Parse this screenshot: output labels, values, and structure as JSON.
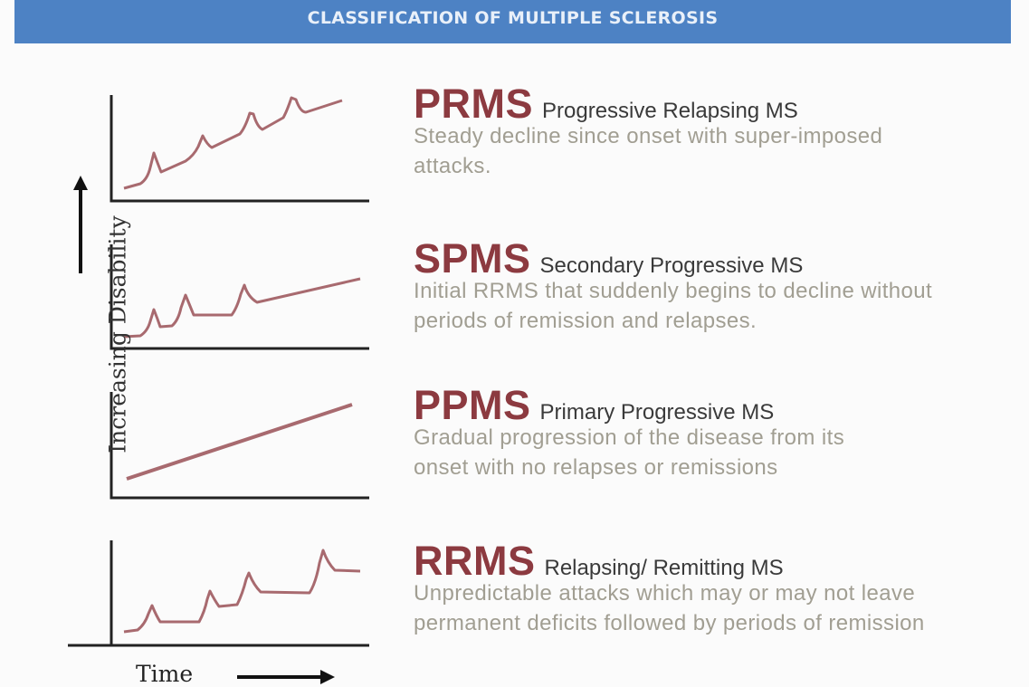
{
  "header": {
    "title": "CLASSIFICATION OF MULTIPLE SCLEROSIS"
  },
  "axes": {
    "y_label": "Increasing Disability",
    "x_label": "Time"
  },
  "colors": {
    "banner": "#4d82c4",
    "curve": "#a86a6f",
    "abbr": "#8c3a40",
    "description": "#a19e92"
  },
  "types": [
    {
      "abbr": "PRMS",
      "full_name": "Progressive Relapsing MS",
      "description": [
        "Steady decline since onset with super-imposed",
        "attacks."
      ]
    },
    {
      "abbr": "SPMS",
      "full_name": "Secondary Progressive MS",
      "description": [
        "Initial RRMS that suddenly begins to decline without",
        "periods of remission and relapses."
      ]
    },
    {
      "abbr": "PPMS",
      "full_name": "Primary Progressive MS",
      "description": [
        "Gradual progression of the disease from its",
        "onset with no relapses or remissions"
      ]
    },
    {
      "abbr": "RRMS",
      "full_name": "Relapsing/ Remitting MS",
      "description": [
        "Unpredictable attacks which may or may not leave",
        "permanent deficits followed by periods of remission"
      ]
    }
  ]
}
